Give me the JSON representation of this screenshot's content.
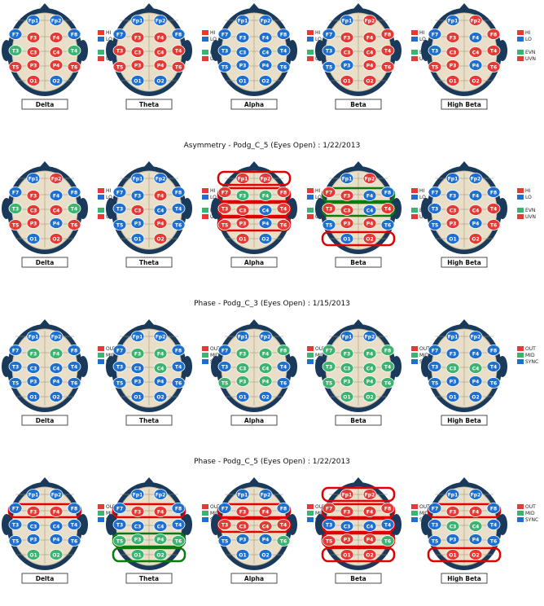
{
  "colors": {
    "red": "#e53935",
    "blue": "#1e6fd0",
    "green": "#3cb371",
    "headDark": "#1a3a5c",
    "brain": "#e9dfc9",
    "boxRed": "#e00000",
    "boxGreen": "#0a7a0a"
  },
  "bands": [
    "Delta",
    "Theta",
    "Alpha",
    "Beta",
    "High Beta"
  ],
  "panels": [
    {
      "title": "",
      "legend": [
        {
          "label": "HI",
          "color": "red"
        },
        {
          "label": "LO",
          "color": "blue"
        },
        {
          "label": "EVN",
          "color": "green"
        },
        {
          "label": "UVN",
          "color": "red"
        }
      ],
      "heads": [
        {
          "band": "Delta",
          "electrodes": {
            "Fp1": "blue",
            "Fp2": "blue",
            "F7": "blue",
            "F3": "red",
            "F4": "red",
            "F8": "blue",
            "T3": "green",
            "C3": "red",
            "C4": "red",
            "T4": "green",
            "T5": "red",
            "P3": "red",
            "P4": "red",
            "T6": "red",
            "O1": "red",
            "O2": "blue"
          },
          "boxes": []
        },
        {
          "band": "Theta",
          "electrodes": {
            "Fp1": "blue",
            "Fp2": "blue",
            "F7": "blue",
            "F3": "red",
            "F4": "red",
            "F8": "blue",
            "T3": "red",
            "C3": "red",
            "C4": "red",
            "T4": "red",
            "T5": "red",
            "P3": "red",
            "P4": "red",
            "T6": "red",
            "O1": "blue",
            "O2": "blue"
          },
          "boxes": []
        },
        {
          "band": "Alpha",
          "electrodes": {
            "Fp1": "blue",
            "Fp2": "blue",
            "F7": "blue",
            "F3": "blue",
            "F4": "blue",
            "F8": "blue",
            "T3": "blue",
            "C3": "blue",
            "C4": "blue",
            "T4": "blue",
            "T5": "blue",
            "P3": "blue",
            "P4": "blue",
            "T6": "blue",
            "O1": "blue",
            "O2": "blue"
          },
          "boxes": []
        },
        {
          "band": "Beta",
          "electrodes": {
            "Fp1": "blue",
            "Fp2": "red",
            "F7": "blue",
            "F3": "red",
            "F4": "red",
            "F8": "red",
            "T3": "blue",
            "C3": "red",
            "C4": "red",
            "T4": "red",
            "T5": "blue",
            "P3": "blue",
            "P4": "red",
            "T6": "red",
            "O1": "red",
            "O2": "red"
          },
          "boxes": []
        },
        {
          "band": "High Beta",
          "electrodes": {
            "Fp1": "blue",
            "Fp2": "red",
            "F7": "blue",
            "F3": "red",
            "F4": "blue",
            "F8": "red",
            "T3": "blue",
            "C3": "red",
            "C4": "red",
            "T4": "red",
            "T5": "red",
            "P3": "red",
            "P4": "blue",
            "T6": "red",
            "O1": "red",
            "O2": "red"
          },
          "boxes": []
        }
      ]
    },
    {
      "title": "Asymmetry - Podg_C_5 (Eyes Open) : 1/22/2013",
      "legend": [
        {
          "label": "HI",
          "color": "red"
        },
        {
          "label": "LO",
          "color": "blue"
        },
        {
          "label": "EVN",
          "color": "green"
        },
        {
          "label": "UVN",
          "color": "red"
        }
      ],
      "heads": [
        {
          "band": "Delta",
          "electrodes": {
            "Fp1": "blue",
            "Fp2": "red",
            "F7": "blue",
            "F3": "red",
            "F4": "blue",
            "F8": "blue",
            "T3": "green",
            "C3": "red",
            "C4": "red",
            "T4": "green",
            "T5": "red",
            "P3": "red",
            "P4": "blue",
            "T6": "red",
            "O1": "blue",
            "O2": "red"
          },
          "boxes": []
        },
        {
          "band": "Theta",
          "electrodes": {
            "Fp1": "blue",
            "Fp2": "blue",
            "F7": "blue",
            "F3": "blue",
            "F4": "red",
            "F8": "blue",
            "T3": "blue",
            "C3": "red",
            "C4": "blue",
            "T4": "blue",
            "T5": "blue",
            "P3": "blue",
            "P4": "red",
            "T6": "blue",
            "O1": "blue",
            "O2": "red"
          },
          "boxes": []
        },
        {
          "band": "Alpha",
          "electrodes": {
            "Fp1": "red",
            "Fp2": "red",
            "F7": "red",
            "F3": "green",
            "F4": "green",
            "F8": "red",
            "T3": "red",
            "C3": "red",
            "C4": "blue",
            "T4": "red",
            "T5": "red",
            "P3": "red",
            "P4": "blue",
            "T6": "red",
            "O1": "red",
            "O2": "blue"
          },
          "boxes": [
            {
              "row": 0,
              "color": "boxRed"
            },
            {
              "row": 1,
              "color": "boxRed"
            },
            {
              "row": 2,
              "color": "boxRed"
            },
            {
              "row": 3,
              "color": "boxRed"
            }
          ]
        },
        {
          "band": "Beta",
          "electrodes": {
            "Fp1": "blue",
            "Fp2": "red",
            "F7": "red",
            "F3": "red",
            "F4": "blue",
            "F8": "blue",
            "T3": "red",
            "C3": "red",
            "C4": "blue",
            "T4": "red",
            "T5": "blue",
            "P3": "red",
            "P4": "red",
            "T6": "blue",
            "O1": "blue",
            "O2": "red"
          },
          "boxes": [
            {
              "row": 1,
              "color": "boxGreen"
            },
            {
              "row": 2,
              "color": "boxGreen"
            },
            {
              "row": 4,
              "color": "boxRed"
            }
          ]
        },
        {
          "band": "High Beta",
          "electrodes": {
            "Fp1": "blue",
            "Fp2": "blue",
            "F7": "blue",
            "F3": "blue",
            "F4": "blue",
            "F8": "blue",
            "T3": "blue",
            "C3": "red",
            "C4": "red",
            "T4": "red",
            "T5": "blue",
            "P3": "red",
            "P4": "blue",
            "T6": "red",
            "O1": "blue",
            "O2": "red"
          },
          "boxes": []
        }
      ]
    },
    {
      "title": "Phase - Podg_C_3 (Eyes Open) : 1/15/2013",
      "legend": [
        {
          "label": "OUT",
          "color": "red"
        },
        {
          "label": "MID",
          "color": "green"
        },
        {
          "label": "SYNC",
          "color": "blue"
        }
      ],
      "heads": [
        {
          "band": "Delta",
          "electrodes": {
            "Fp1": "blue",
            "Fp2": "blue",
            "F7": "blue",
            "F3": "green",
            "F4": "green",
            "F8": "blue",
            "T3": "blue",
            "C3": "blue",
            "C4": "blue",
            "T4": "blue",
            "T5": "blue",
            "P3": "blue",
            "P4": "blue",
            "T6": "blue",
            "O1": "blue",
            "O2": "blue"
          },
          "boxes": []
        },
        {
          "band": "Theta",
          "electrodes": {
            "Fp1": "blue",
            "Fp2": "blue",
            "F7": "blue",
            "F3": "green",
            "F4": "green",
            "F8": "blue",
            "T3": "blue",
            "C3": "blue",
            "C4": "green",
            "T4": "blue",
            "T5": "blue",
            "P3": "blue",
            "P4": "blue",
            "T6": "blue",
            "O1": "blue",
            "O2": "blue"
          },
          "boxes": []
        },
        {
          "band": "Alpha",
          "electrodes": {
            "Fp1": "blue",
            "Fp2": "blue",
            "F7": "blue",
            "F3": "green",
            "F4": "green",
            "F8": "green",
            "T3": "blue",
            "C3": "green",
            "C4": "green",
            "T4": "blue",
            "T5": "green",
            "P3": "green",
            "P4": "green",
            "T6": "blue",
            "O1": "blue",
            "O2": "blue"
          },
          "boxes": []
        },
        {
          "band": "Beta",
          "electrodes": {
            "Fp1": "blue",
            "Fp2": "blue",
            "F7": "green",
            "F3": "green",
            "F4": "green",
            "F8": "green",
            "T3": "green",
            "C3": "green",
            "C4": "green",
            "T4": "green",
            "T5": "green",
            "P3": "green",
            "P4": "green",
            "T6": "green",
            "O1": "green",
            "O2": "green"
          },
          "boxes": []
        },
        {
          "band": "High Beta",
          "electrodes": {
            "Fp1": "blue",
            "Fp2": "blue",
            "F7": "blue",
            "F3": "blue",
            "F4": "blue",
            "F8": "blue",
            "T3": "blue",
            "C3": "green",
            "C4": "green",
            "T4": "blue",
            "T5": "blue",
            "P3": "blue",
            "P4": "blue",
            "T6": "blue",
            "O1": "blue",
            "O2": "blue"
          },
          "boxes": []
        }
      ]
    },
    {
      "title": "Phase - Podg_C_5 (Eyes Open) : 1/22/2013",
      "legend": [
        {
          "label": "OUT",
          "color": "red"
        },
        {
          "label": "MID",
          "color": "green"
        },
        {
          "label": "SYNC",
          "color": "blue"
        }
      ],
      "heads": [
        {
          "band": "Delta",
          "electrodes": {
            "Fp1": "blue",
            "Fp2": "blue",
            "F7": "blue",
            "F3": "red",
            "F4": "red",
            "F8": "blue",
            "T3": "blue",
            "C3": "blue",
            "C4": "blue",
            "T4": "blue",
            "T5": "blue",
            "P3": "blue",
            "P4": "blue",
            "T6": "blue",
            "O1": "green",
            "O2": "green"
          },
          "boxes": [
            {
              "row": 1,
              "color": "boxRed"
            }
          ]
        },
        {
          "band": "Theta",
          "electrodes": {
            "Fp1": "blue",
            "Fp2": "blue",
            "F7": "blue",
            "F3": "red",
            "F4": "red",
            "F8": "blue",
            "T3": "blue",
            "C3": "blue",
            "C4": "blue",
            "T4": "blue",
            "T5": "green",
            "P3": "green",
            "P4": "green",
            "T6": "green",
            "O1": "green",
            "O2": "green"
          },
          "boxes": [
            {
              "row": 1,
              "color": "boxRed"
            },
            {
              "row": 3,
              "color": "boxGreen"
            },
            {
              "row": 4,
              "color": "boxGreen"
            }
          ]
        },
        {
          "band": "Alpha",
          "electrodes": {
            "Fp1": "blue",
            "Fp2": "blue",
            "F7": "blue",
            "F3": "red",
            "F4": "red",
            "F8": "blue",
            "T3": "red",
            "C3": "red",
            "C4": "red",
            "T4": "red",
            "T5": "blue",
            "P3": "blue",
            "P4": "blue",
            "T6": "green",
            "O1": "blue",
            "O2": "blue"
          },
          "boxes": [
            {
              "row": 1,
              "color": "boxRed"
            },
            {
              "row": 2,
              "color": "boxRed"
            }
          ]
        },
        {
          "band": "Beta",
          "electrodes": {
            "Fp1": "red",
            "Fp2": "red",
            "F7": "red",
            "F3": "red",
            "F4": "red",
            "F8": "red",
            "T3": "blue",
            "C3": "blue",
            "C4": "blue",
            "T4": "blue",
            "T5": "red",
            "P3": "red",
            "P4": "red",
            "T6": "green",
            "O1": "red",
            "O2": "red"
          },
          "boxes": [
            {
              "row": 0,
              "color": "boxRed"
            },
            {
              "row": 1,
              "color": "boxRed"
            },
            {
              "row": 2,
              "color": "boxRed"
            },
            {
              "row": 3,
              "color": "boxRed"
            },
            {
              "row": 4,
              "color": "boxRed"
            }
          ]
        },
        {
          "band": "High Beta",
          "electrodes": {
            "Fp1": "blue",
            "Fp2": "blue",
            "F7": "blue",
            "F3": "red",
            "F4": "red",
            "F8": "blue",
            "T3": "blue",
            "C3": "green",
            "C4": "green",
            "T4": "blue",
            "T5": "blue",
            "P3": "blue",
            "P4": "blue",
            "T6": "blue",
            "O1": "red",
            "O2": "red"
          },
          "boxes": [
            {
              "row": 1,
              "color": "boxRed"
            },
            {
              "row": 4,
              "color": "boxRed"
            }
          ]
        }
      ]
    }
  ]
}
